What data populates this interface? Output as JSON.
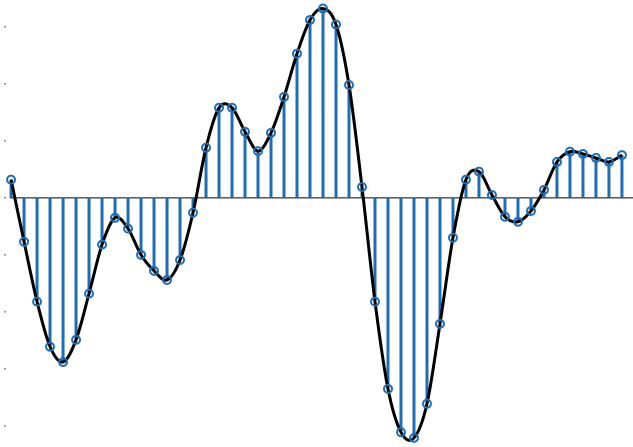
{
  "chart_data": {
    "type": "stem",
    "x": [
      0,
      1,
      2,
      3,
      4,
      5,
      6,
      7,
      8,
      9,
      10,
      11,
      12,
      13,
      14,
      15,
      16,
      17,
      18,
      19,
      20,
      21,
      22,
      23,
      24,
      25,
      26,
      27,
      28,
      29,
      30,
      31,
      32,
      33,
      34,
      35,
      36,
      37,
      38,
      39,
      40,
      41,
      42,
      43,
      44,
      45,
      46,
      47
    ],
    "values": [
      0.32,
      -0.77,
      -1.82,
      -2.61,
      -2.88,
      -2.49,
      -1.68,
      -0.82,
      -0.35,
      -0.54,
      -1.0,
      -1.28,
      -1.44,
      -1.09,
      -0.26,
      0.88,
      1.58,
      1.58,
      1.16,
      0.82,
      1.14,
      1.77,
      2.53,
      3.12,
      3.32,
      3.04,
      1.98,
      0.19,
      -1.82,
      -3.35,
      -4.11,
      -4.21,
      -3.61,
      -2.21,
      -0.7,
      0.32,
      0.46,
      0.05,
      -0.33,
      -0.42,
      -0.23,
      0.14,
      0.63,
      0.81,
      0.77,
      0.7,
      0.63,
      0.75
    ],
    "xlim": [
      -0.85,
      47.85
    ],
    "ylim": [
      -4.37,
      3.47
    ],
    "yticks": [
      -4,
      -3,
      -2,
      -1,
      0,
      1,
      2,
      3
    ],
    "color": "#1f6db5",
    "line_color": "#000000"
  }
}
